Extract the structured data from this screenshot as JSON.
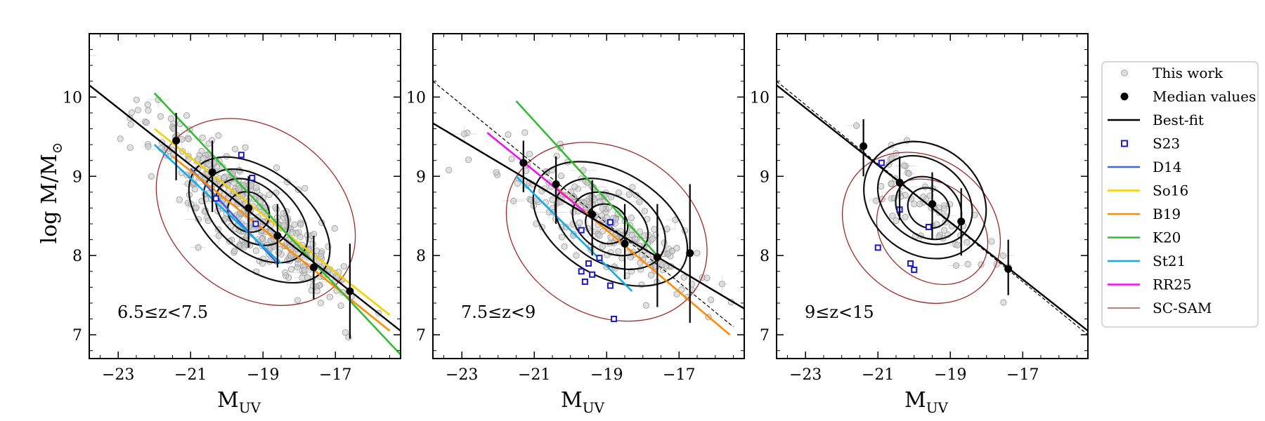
{
  "figure": {
    "ylabel_main": "log M/M",
    "ylabel_sub": "⊙",
    "xlabel_main": "M",
    "xlabel_sub": "UV"
  },
  "legend": {
    "items": [
      {
        "label": "This work",
        "marker": "open-circle",
        "color": "#aaaaaa"
      },
      {
        "label": "Median values",
        "marker": "filled-circle",
        "color": "#000000"
      },
      {
        "label": "Best-fit",
        "marker": "line",
        "color": "#000000"
      },
      {
        "label": "S23",
        "marker": "open-square",
        "color": "#1a1acc"
      },
      {
        "label": "D14",
        "marker": "line",
        "color": "#4466dd"
      },
      {
        "label": "So16",
        "marker": "line",
        "color": "#f5d000"
      },
      {
        "label": "B19",
        "marker": "line",
        "color": "#ff8c00"
      },
      {
        "label": "K20",
        "marker": "line",
        "color": "#33bb33"
      },
      {
        "label": "St21",
        "marker": "line",
        "color": "#11aaee"
      },
      {
        "label": "RR25",
        "marker": "line",
        "color": "#ee11ee"
      },
      {
        "label": "SC-SAM",
        "marker": "line",
        "color": "#9e2a2a"
      }
    ]
  },
  "chart_data": [
    {
      "type": "scatter",
      "panel_label": "6.5≤z<7.5",
      "xlim": [
        -23.8,
        -15.2
      ],
      "ylim": [
        6.7,
        10.8
      ],
      "xticks": [
        -23,
        -21,
        -19,
        -17
      ],
      "xtick_labels": [
        "−23",
        "−21",
        "−19",
        "−17"
      ],
      "yticks": [
        7,
        8,
        9,
        10
      ],
      "ytick_labels": [
        "7",
        "8",
        "9",
        "10"
      ],
      "median_values": [
        {
          "x": -21.4,
          "y": 9.45,
          "ylo": 8.95,
          "yhi": 9.8
        },
        {
          "x": -20.4,
          "y": 9.05,
          "ylo": 8.55,
          "yhi": 9.45
        },
        {
          "x": -19.4,
          "y": 8.6,
          "ylo": 8.1,
          "yhi": 9.0
        },
        {
          "x": -18.6,
          "y": 8.25,
          "ylo": 7.85,
          "yhi": 8.65
        },
        {
          "x": -17.6,
          "y": 7.85,
          "ylo": 7.45,
          "yhi": 8.25
        },
        {
          "x": -16.6,
          "y": 7.55,
          "ylo": 6.95,
          "yhi": 8.15
        }
      ],
      "best_fit": {
        "x": [
          -23.8,
          -15.2
        ],
        "y": [
          10.15,
          7.05
        ],
        "style": "solid"
      },
      "s23": [
        {
          "x": -19.6,
          "y": 9.27
        },
        {
          "x": -19.3,
          "y": 8.98
        },
        {
          "x": -20.3,
          "y": 8.72
        },
        {
          "x": -19.2,
          "y": 8.4
        }
      ],
      "literature_lines": [
        {
          "name": "D14",
          "x": [
            -21.0,
            -18.6
          ],
          "y": [
            9.1,
            7.9
          ]
        },
        {
          "name": "So16",
          "x": [
            -22.0,
            -15.5
          ],
          "y": [
            9.6,
            7.25
          ]
        },
        {
          "name": "B19",
          "x": [
            -21.5,
            -15.5
          ],
          "y": [
            9.25,
            7.05
          ]
        },
        {
          "name": "K20",
          "x": [
            -22.0,
            -15.2
          ],
          "y": [
            10.05,
            6.75
          ]
        },
        {
          "name": "St21",
          "x": [
            -22.0,
            -18.5
          ],
          "y": [
            9.4,
            7.9
          ]
        }
      ],
      "contours": {
        "median_contours": [
          {
            "cx": -19.4,
            "cy": 8.55,
            "a": 0.8,
            "b": 0.22
          },
          {
            "cx": -19.3,
            "cy": 8.55,
            "a": 1.5,
            "b": 0.32
          },
          {
            "cx": -19.2,
            "cy": 8.5,
            "a": 2.2,
            "b": 0.42
          },
          {
            "cx": -19.1,
            "cy": 8.45,
            "a": 3.0,
            "b": 0.55
          }
        ],
        "sam_contours": [
          {
            "cx": -19.2,
            "cy": 8.55,
            "a": 4.0,
            "b": 0.95
          }
        ]
      }
    },
    {
      "type": "scatter",
      "panel_label": "7.5≤z<9",
      "xlim": [
        -23.8,
        -15.2
      ],
      "ylim": [
        6.7,
        10.8
      ],
      "xticks": [
        -23,
        -21,
        -19,
        -17
      ],
      "xtick_labels": [
        "−23",
        "−21",
        "−19",
        "−17"
      ],
      "yticks": [
        7,
        8,
        9,
        10
      ],
      "ytick_labels": [
        "7",
        "8",
        "9",
        "10"
      ],
      "median_values": [
        {
          "x": -21.3,
          "y": 9.17,
          "ylo": 8.8,
          "yhi": 9.45
        },
        {
          "x": -20.4,
          "y": 8.9,
          "ylo": 8.4,
          "yhi": 9.25
        },
        {
          "x": -19.4,
          "y": 8.52,
          "ylo": 8.0,
          "yhi": 8.95
        },
        {
          "x": -18.5,
          "y": 8.15,
          "ylo": 7.7,
          "yhi": 8.65
        },
        {
          "x": -17.6,
          "y": 7.98,
          "ylo": 7.35,
          "yhi": 8.65
        },
        {
          "x": -16.7,
          "y": 8.03,
          "ylo": 7.15,
          "yhi": 8.9
        }
      ],
      "best_fit": {
        "x": [
          -23.8,
          -15.2
        ],
        "y": [
          9.67,
          7.33
        ],
        "style": "solid"
      },
      "reference_fit": {
        "x": [
          -23.8,
          -15.5
        ],
        "y": [
          10.2,
          7.1
        ],
        "style": "dashed"
      },
      "s23": [
        {
          "x": -19.7,
          "y": 8.32
        },
        {
          "x": -18.9,
          "y": 8.42
        },
        {
          "x": -19.2,
          "y": 7.97
        },
        {
          "x": -19.5,
          "y": 7.9
        },
        {
          "x": -19.4,
          "y": 7.76
        },
        {
          "x": -19.7,
          "y": 7.8
        },
        {
          "x": -19.6,
          "y": 7.67
        },
        {
          "x": -18.9,
          "y": 7.62
        },
        {
          "x": -18.8,
          "y": 7.2
        }
      ],
      "literature_lines": [
        {
          "name": "B19",
          "x": [
            -20.5,
            -15.6
          ],
          "y": [
            8.9,
            7.0
          ]
        },
        {
          "name": "K20",
          "x": [
            -21.5,
            -17.6
          ],
          "y": [
            9.95,
            8.0
          ]
        },
        {
          "name": "St21",
          "x": [
            -21.5,
            -18.3
          ],
          "y": [
            9.0,
            7.55
          ]
        },
        {
          "name": "RR25",
          "x": [
            -22.3,
            -19.6
          ],
          "y": [
            9.55,
            8.55
          ]
        }
      ],
      "contours": {
        "median_contours": [
          {
            "cx": -19.0,
            "cy": 8.4,
            "a": 0.8,
            "b": 0.22
          },
          {
            "cx": -18.9,
            "cy": 8.4,
            "a": 1.5,
            "b": 0.32
          },
          {
            "cx": -18.9,
            "cy": 8.4,
            "a": 2.2,
            "b": 0.45
          },
          {
            "cx": -18.9,
            "cy": 8.4,
            "a": 3.1,
            "b": 0.6
          }
        ],
        "sam_contours": [
          {
            "cx": -19.0,
            "cy": 8.3,
            "a": 3.9,
            "b": 0.95
          }
        ]
      }
    },
    {
      "type": "scatter",
      "panel_label": "9≤z<15",
      "xlim": [
        -23.8,
        -15.2
      ],
      "ylim": [
        6.7,
        10.8
      ],
      "xticks": [
        -23,
        -21,
        -19,
        -17
      ],
      "xtick_labels": [
        "−23",
        "−21",
        "−19",
        "−17"
      ],
      "yticks": [
        7,
        8,
        9,
        10
      ],
      "ytick_labels": [
        "7",
        "8",
        "9",
        "10"
      ],
      "median_values": [
        {
          "x": -21.4,
          "y": 9.38,
          "ylo": 9.0,
          "yhi": 9.72
        },
        {
          "x": -20.4,
          "y": 8.92,
          "ylo": 8.45,
          "yhi": 9.25
        },
        {
          "x": -19.5,
          "y": 8.65,
          "ylo": 8.2,
          "yhi": 9.05
        },
        {
          "x": -18.7,
          "y": 8.43,
          "ylo": 8.0,
          "yhi": 8.85
        },
        {
          "x": -17.4,
          "y": 7.83,
          "ylo": 7.5,
          "yhi": 8.2
        }
      ],
      "best_fit": {
        "x": [
          -23.8,
          -15.2
        ],
        "y": [
          10.15,
          7.05
        ],
        "style": "solid"
      },
      "reference_fit": {
        "x": [
          -23.8,
          -15.2
        ],
        "y": [
          10.2,
          7.0
        ],
        "style": "dashed"
      },
      "s23": [
        {
          "x": -20.9,
          "y": 9.17
        },
        {
          "x": -20.4,
          "y": 8.58
        },
        {
          "x": -19.6,
          "y": 8.36
        },
        {
          "x": -21.0,
          "y": 8.1
        },
        {
          "x": -20.1,
          "y": 7.9
        },
        {
          "x": -20.0,
          "y": 7.82
        }
      ],
      "literature_lines": [],
      "contours": {
        "median_contours": [
          {
            "cx": -19.6,
            "cy": 8.6,
            "a": 0.8,
            "b": 0.22
          },
          {
            "cx": -19.6,
            "cy": 8.6,
            "a": 1.3,
            "b": 0.33
          },
          {
            "cx": -19.7,
            "cy": 8.7,
            "a": 1.9,
            "b": 0.45
          },
          {
            "cx": -19.7,
            "cy": 8.7,
            "a": 2.4,
            "b": 0.62
          }
        ],
        "sam_contours": [
          {
            "cx": -19.8,
            "cy": 8.35,
            "a": 3.1,
            "b": 0.8
          },
          {
            "cx": -19.5,
            "cy": 8.3,
            "a": 2.2,
            "b": 0.55
          }
        ]
      }
    }
  ]
}
